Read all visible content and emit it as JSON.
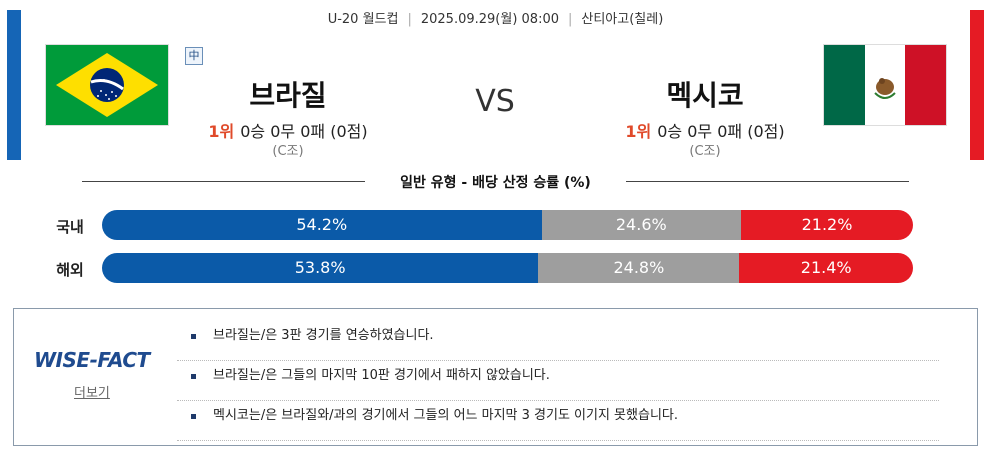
{
  "match": {
    "competition": "U-20 월드컵",
    "datetime": "2025.09.29(월) 08:00",
    "venue": "산티아고(칠레)"
  },
  "home": {
    "name": "브라질",
    "rank": "1위",
    "record": "0승 0무 0패 (0점)",
    "group": "(C조)",
    "badge": "中",
    "flag_icon": "brazil-flag"
  },
  "vs": "VS",
  "away": {
    "name": "멕시코",
    "rank": "1위",
    "record": "0승 0무 0패 (0점)",
    "group": "(C조)",
    "flag_icon": "mexico-flag"
  },
  "odds": {
    "title": "일반 유형 - 배당 산정 승률 (%)",
    "rows": [
      {
        "label": "국내",
        "win": 54.2,
        "draw": 24.6,
        "lose": 21.2,
        "win_text": "54.2%",
        "draw_text": "24.6%",
        "lose_text": "21.2%"
      },
      {
        "label": "해외",
        "win": 53.8,
        "draw": 24.8,
        "lose": 21.4,
        "win_text": "53.8%",
        "draw_text": "24.8%",
        "lose_text": "21.4%"
      }
    ]
  },
  "wisefact": {
    "logo": "WISE-FACT",
    "more": "더보기",
    "facts": [
      "브라질는/은 3판 경기를 연승하였습니다.",
      "브라질는/은 그들의 마지막 10판 경기에서 패하지 않았습니다.",
      "멕시코는/은 브라질와/과의 경기에서 그들의 어느 마지막 3 경기도 이기지 못했습니다."
    ]
  },
  "colors": {
    "home_accent": "#1565b6",
    "away_accent": "#e51b24",
    "win": "#0b5aa8",
    "draw": "#9e9e9e",
    "lose": "#e51b24",
    "rank": "#e04a2a"
  }
}
